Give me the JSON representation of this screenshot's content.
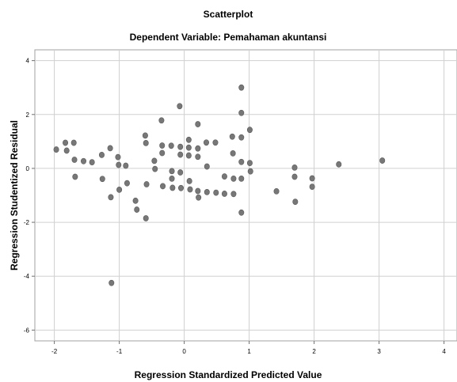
{
  "chart_data": {
    "type": "scatter",
    "title": "Scatterplot",
    "subtitle": "Dependent Variable: Pemahaman akuntansi",
    "xlabel": "Regression Standardized Predicted Value",
    "ylabel": "Regression Studentized Residual",
    "xlim": [
      -2.3,
      4.2
    ],
    "ylim": [
      -6.4,
      4.4
    ],
    "xticks": [
      -2,
      -1,
      0,
      1,
      2,
      3,
      4
    ],
    "yticks": [
      4,
      2,
      0,
      -2,
      -4,
      -6
    ],
    "grid": true,
    "marker_color": "#777777",
    "points": [
      {
        "x": -1.97,
        "y": 0.7
      },
      {
        "x": -1.83,
        "y": 0.95
      },
      {
        "x": -1.81,
        "y": 0.66
      },
      {
        "x": -1.7,
        "y": 0.95
      },
      {
        "x": -1.69,
        "y": 0.32
      },
      {
        "x": -1.68,
        "y": -0.31
      },
      {
        "x": -1.55,
        "y": 0.27
      },
      {
        "x": -1.42,
        "y": 0.23
      },
      {
        "x": -1.27,
        "y": 0.5
      },
      {
        "x": -1.26,
        "y": -0.39
      },
      {
        "x": -1.14,
        "y": 0.75
      },
      {
        "x": -1.13,
        "y": -1.07
      },
      {
        "x": -1.12,
        "y": -4.25
      },
      {
        "x": -1.02,
        "y": 0.42
      },
      {
        "x": -1.01,
        "y": 0.13
      },
      {
        "x": -1.0,
        "y": -0.79
      },
      {
        "x": -0.9,
        "y": 0.1
      },
      {
        "x": -0.88,
        "y": -0.55
      },
      {
        "x": -0.75,
        "y": -1.2
      },
      {
        "x": -0.73,
        "y": -1.53
      },
      {
        "x": -0.6,
        "y": 1.22
      },
      {
        "x": -0.59,
        "y": 0.94
      },
      {
        "x": -0.58,
        "y": -0.59
      },
      {
        "x": -0.59,
        "y": -1.85
      },
      {
        "x": -0.46,
        "y": 0.28
      },
      {
        "x": -0.45,
        "y": -0.02
      },
      {
        "x": -0.35,
        "y": 1.78
      },
      {
        "x": -0.34,
        "y": 0.85
      },
      {
        "x": -0.34,
        "y": 0.57
      },
      {
        "x": -0.33,
        "y": -0.66
      },
      {
        "x": -0.2,
        "y": 0.84
      },
      {
        "x": -0.19,
        "y": -0.1
      },
      {
        "x": -0.19,
        "y": -0.38
      },
      {
        "x": -0.18,
        "y": -0.72
      },
      {
        "x": -0.07,
        "y": 2.31
      },
      {
        "x": -0.06,
        "y": 0.8
      },
      {
        "x": -0.06,
        "y": 0.51
      },
      {
        "x": -0.06,
        "y": -0.15
      },
      {
        "x": -0.05,
        "y": -0.73
      },
      {
        "x": 0.07,
        "y": 1.06
      },
      {
        "x": 0.07,
        "y": 0.77
      },
      {
        "x": 0.07,
        "y": 0.48
      },
      {
        "x": 0.08,
        "y": -0.47
      },
      {
        "x": 0.09,
        "y": -0.78
      },
      {
        "x": 0.21,
        "y": 1.64
      },
      {
        "x": 0.21,
        "y": 0.74
      },
      {
        "x": 0.21,
        "y": 0.43
      },
      {
        "x": 0.21,
        "y": -0.84
      },
      {
        "x": 0.22,
        "y": -1.08
      },
      {
        "x": 0.34,
        "y": 0.96
      },
      {
        "x": 0.35,
        "y": 0.07
      },
      {
        "x": 0.35,
        "y": -0.88
      },
      {
        "x": 0.48,
        "y": 0.96
      },
      {
        "x": 0.49,
        "y": -0.9
      },
      {
        "x": 0.62,
        "y": -0.3
      },
      {
        "x": 0.62,
        "y": -0.94
      },
      {
        "x": 0.74,
        "y": 1.18
      },
      {
        "x": 0.75,
        "y": 0.56
      },
      {
        "x": 0.76,
        "y": -0.38
      },
      {
        "x": 0.76,
        "y": -0.95
      },
      {
        "x": 0.88,
        "y": 3.0
      },
      {
        "x": 0.88,
        "y": 2.06
      },
      {
        "x": 0.88,
        "y": 1.15
      },
      {
        "x": 0.88,
        "y": 0.24
      },
      {
        "x": 0.88,
        "y": -0.38
      },
      {
        "x": 0.88,
        "y": -1.64
      },
      {
        "x": 1.01,
        "y": 1.43
      },
      {
        "x": 1.01,
        "y": 0.2
      },
      {
        "x": 1.02,
        "y": -0.11
      },
      {
        "x": 1.42,
        "y": -0.85
      },
      {
        "x": 1.7,
        "y": 0.03
      },
      {
        "x": 1.7,
        "y": -0.31
      },
      {
        "x": 1.71,
        "y": -1.24
      },
      {
        "x": 1.97,
        "y": -0.37
      },
      {
        "x": 1.97,
        "y": -0.68
      },
      {
        "x": 2.38,
        "y": 0.15
      },
      {
        "x": 3.05,
        "y": 0.29
      }
    ]
  }
}
